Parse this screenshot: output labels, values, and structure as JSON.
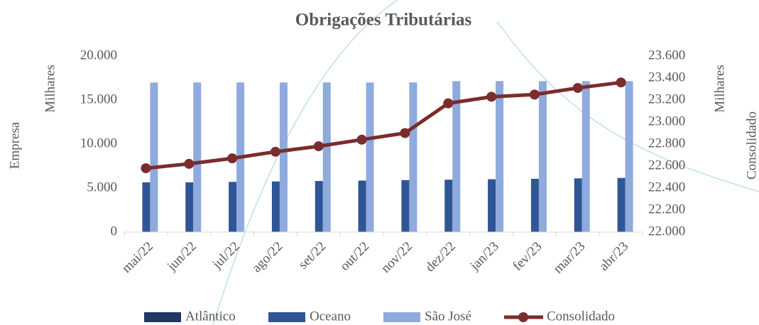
{
  "chart_data": {
    "type": "bar",
    "title": "Obrigações Tributárias",
    "y_label": "Empresa",
    "y_unit": "Milhares",
    "y2_label": "Consolidado",
    "y2_unit": "Milhares",
    "categories": [
      "mai/22",
      "jun/22",
      "jul/22",
      "ago/22",
      "set/22",
      "out/22",
      "nov/22",
      "dez/22",
      "jan/23",
      "fev/23",
      "mar/23",
      "abr/23"
    ],
    "series": [
      {
        "name": "Atlântico",
        "type": "bar",
        "color": "#1f3864",
        "values": [
          0,
          0,
          0,
          0,
          0,
          0,
          0,
          0,
          0,
          0,
          0,
          0
        ]
      },
      {
        "name": "Oceano",
        "type": "bar",
        "color": "#2f5597",
        "values": [
          5650,
          5650,
          5700,
          5750,
          5800,
          5850,
          5900,
          5950,
          6000,
          6050,
          6100,
          6150
        ]
      },
      {
        "name": "São  José",
        "type": "bar",
        "color": "#8faadc",
        "values": [
          17000,
          17000,
          17000,
          17000,
          17000,
          17000,
          17000,
          17150,
          17150,
          17150,
          17150,
          17150
        ]
      },
      {
        "name": "Consolidado",
        "type": "line",
        "axis": "y2",
        "color": "#7b2c2c",
        "values": [
          22580,
          22620,
          22670,
          22730,
          22780,
          22840,
          22900,
          23170,
          23230,
          23250,
          23310,
          23360
        ]
      }
    ],
    "ylim": [
      0,
      20000
    ],
    "yticks": [
      0,
      {
        "value": 5000,
        "label": "5.000"
      },
      {
        "value": 10000,
        "label": "10.000"
      },
      {
        "value": 15000,
        "label": "15.000"
      },
      {
        "value": 20000,
        "label": "20.000"
      }
    ],
    "y2lim": [
      22000,
      23600
    ],
    "y2ticks": [
      {
        "value": 22000,
        "label": "22.000"
      },
      {
        "value": 22200,
        "label": "22.200"
      },
      {
        "value": 22400,
        "label": "22.400"
      },
      {
        "value": 22600,
        "label": "22.600"
      },
      {
        "value": 22800,
        "label": "22.800"
      },
      {
        "value": 23000,
        "label": "23.000"
      },
      {
        "value": 23200,
        "label": "23.200"
      },
      {
        "value": 23400,
        "label": "23.400"
      },
      {
        "value": 23600,
        "label": "23.600"
      }
    ],
    "grid": false,
    "legend": "bottom"
  }
}
